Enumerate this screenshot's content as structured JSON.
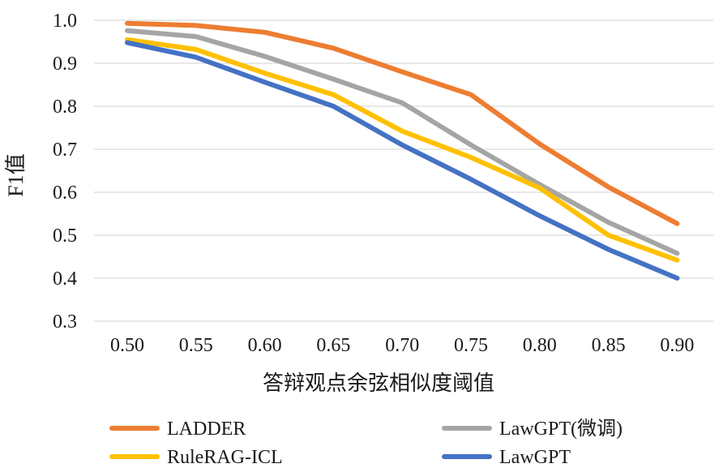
{
  "chart_data": {
    "type": "line",
    "x": [
      "0.50",
      "0.55",
      "0.60",
      "0.65",
      "0.70",
      "0.75",
      "0.80",
      "0.85",
      "0.90"
    ],
    "xlabel": "答辩观点余弦相似度阈值",
    "ylabel": "F1值",
    "ylim": [
      0.3,
      1.0
    ],
    "yticks": [
      "0.3",
      "0.4",
      "0.5",
      "0.6",
      "0.7",
      "0.8",
      "0.9",
      "1.0"
    ],
    "grid": true,
    "legend_position": "bottom",
    "series": [
      {
        "name": "LADDER",
        "color": "#ED7D31",
        "values": [
          0.993,
          0.988,
          0.972,
          0.935,
          0.88,
          0.827,
          0.712,
          0.612,
          0.527
        ]
      },
      {
        "name": "LawGPT(微调)",
        "color": "#A5A5A5",
        "values": [
          0.976,
          0.962,
          0.916,
          0.863,
          0.808,
          0.71,
          0.618,
          0.53,
          0.458
        ]
      },
      {
        "name": "RuleRAG-ICL",
        "color": "#FFC000",
        "values": [
          0.955,
          0.932,
          0.877,
          0.827,
          0.742,
          0.681,
          0.61,
          0.5,
          0.442
        ]
      },
      {
        "name": "LawGPT",
        "color": "#4472C4",
        "values": [
          0.948,
          0.914,
          0.856,
          0.8,
          0.71,
          0.63,
          0.545,
          0.467,
          0.4
        ]
      }
    ]
  }
}
